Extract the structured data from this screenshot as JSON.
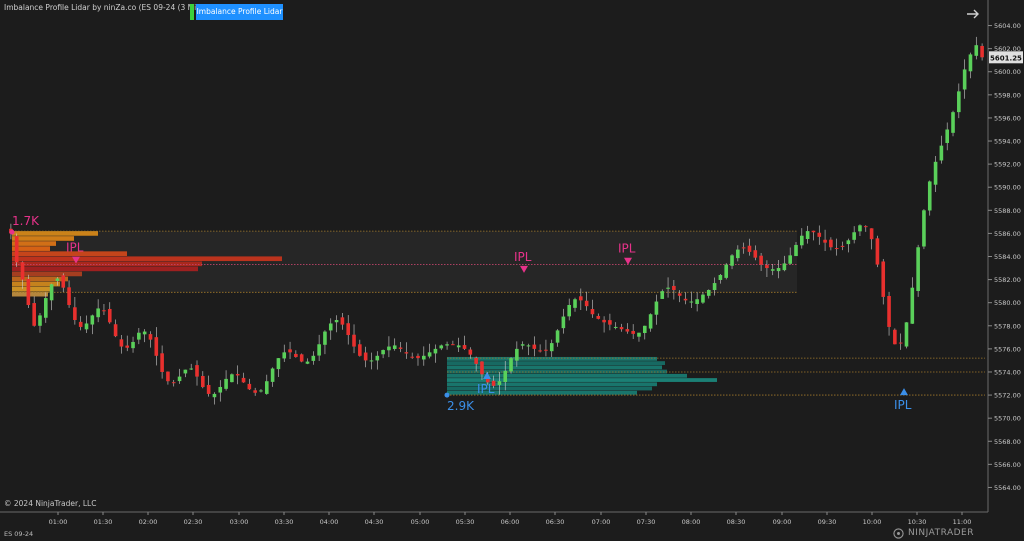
{
  "window": {
    "title": "Imbalance Profile Lidar by ninZa.co (ES 09-24 (3 Minute))",
    "indicator_button": "Imbalance Profile Lidar",
    "copyright": "© 2024 NinjaTrader, LLC",
    "instrument": "ES 09-24",
    "brand": "NINJATRADER"
  },
  "colors": {
    "background": "#1c1c1c",
    "up_candle": "#5ad05a",
    "down_candle": "#e8302e",
    "label_pink": "#e7328a",
    "label_blue": "#3b8fe8",
    "accent_button": "#1e90ff"
  },
  "annotations": {
    "volume_top": "1.7K",
    "volume_bottom": "2.9K",
    "ipl": "IPL"
  },
  "chart_data": {
    "type": "candlestick",
    "instrument": "ES 09-24",
    "timeframe": "3 Minute",
    "last_price": "5601.25",
    "ylim": [
      5563,
      5605
    ],
    "y_ticks": [
      5564,
      5566,
      5568,
      5570,
      5572,
      5574,
      5576,
      5578,
      5580,
      5582,
      5584,
      5586,
      5588,
      5590,
      5592,
      5594,
      5596,
      5598,
      5600,
      5602,
      5604
    ],
    "x_ticks": [
      "01:00",
      "01:30",
      "02:00",
      "02:30",
      "03:00",
      "03:30",
      "04:00",
      "04:30",
      "05:00",
      "05:30",
      "06:00",
      "06:30",
      "07:00",
      "07:30",
      "08:00",
      "08:30",
      "09:00",
      "09:30",
      "10:00",
      "10:30",
      "11:00"
    ],
    "closes": [
      5586.0,
      5583.5,
      5582.0,
      5579.8,
      5578.0,
      5578.9,
      5580.4,
      5581.6,
      5582.1,
      5581.3,
      5579.8,
      5578.5,
      5577.9,
      5578.2,
      5578.9,
      5579.5,
      5579.3,
      5578.3,
      5577.1,
      5576.2,
      5576.1,
      5576.6,
      5577.4,
      5577.5,
      5576.8,
      5575.4,
      5574.0,
      5573.2,
      5573.1,
      5573.6,
      5574.2,
      5574.3,
      5573.6,
      5572.7,
      5572.1,
      5572.1,
      5572.7,
      5573.4,
      5573.8,
      5573.7,
      5573.1,
      5572.5,
      5572.2,
      5572.4,
      5573.2,
      5574.3,
      5575.2,
      5575.7,
      5575.7,
      5575.3,
      5574.9,
      5574.9,
      5575.4,
      5576.4,
      5577.5,
      5578.2,
      5578.5,
      5578.1,
      5577.2,
      5576.2,
      5575.4,
      5575.0,
      5575.0,
      5575.4,
      5575.9,
      5576.2,
      5576.3,
      5576.0,
      5575.6,
      5575.3,
      5575.2,
      5575.4,
      5575.7,
      5576.0,
      5576.3,
      5576.4,
      5576.4,
      5576.3,
      5576.0,
      5575.5,
      5574.7,
      5573.8,
      5573.1,
      5572.8,
      5573.2,
      5574.1,
      5575.2,
      5576.0,
      5576.4,
      5576.3,
      5576.0,
      5575.8,
      5575.9,
      5576.5,
      5577.6,
      5578.8,
      5579.8,
      5580.3,
      5580.2,
      5579.7,
      5579.0,
      5578.6,
      5578.3,
      5578.1,
      5577.9,
      5577.7,
      5577.5,
      5577.3,
      5577.4,
      5578.0,
      5579.0,
      5580.1,
      5581.0,
      5581.3,
      5581.1,
      5580.6,
      5580.2,
      5580.1,
      5580.3,
      5580.7,
      5581.1,
      5581.7,
      5582.4,
      5583.3,
      5584.1,
      5584.6,
      5584.7,
      5584.4,
      5583.9,
      5583.3,
      5583.0,
      5582.9,
      5583.0,
      5583.4,
      5584.1,
      5585.0,
      5585.8,
      5586.2,
      5586.1,
      5585.7,
      5585.2,
      5584.8,
      5584.7,
      5584.9,
      5585.4,
      5586.1,
      5586.7,
      5586.6,
      5585.5,
      5583.3,
      5580.5,
      5577.9,
      5576.4,
      5576.5,
      5578.3,
      5581.3,
      5584.8,
      5588.0,
      5590.5,
      5592.2,
      5593.6,
      5595.0,
      5596.5,
      5598.3,
      5600.2,
      5601.5,
      5602.3,
      5601.25
    ],
    "profiles": [
      {
        "name": "top",
        "total_volume": "1.7K",
        "price_low": 5580.5,
        "price_high": 5586.2,
        "ipl": 5583.3,
        "lines": [
          5586.2,
          5583.3,
          5580.9
        ]
      },
      {
        "name": "bottom",
        "total_volume": "2.9K",
        "price_low": 5572.0,
        "price_high": 5575.3,
        "ipl": 5574.0,
        "lines": [
          5575.2,
          5574.0,
          5572.0
        ]
      }
    ],
    "ipl_markers": [
      {
        "side": "sell",
        "label": "IPL",
        "price": 5583.3
      },
      {
        "side": "sell",
        "label": "IPL",
        "price": 5582.5
      },
      {
        "side": "sell",
        "label": "IPL",
        "price": 5583.2
      },
      {
        "side": "buy",
        "label": "IPL",
        "price": 5574.0
      },
      {
        "side": "buy",
        "label": "IPL",
        "price": 5572.6
      }
    ]
  }
}
